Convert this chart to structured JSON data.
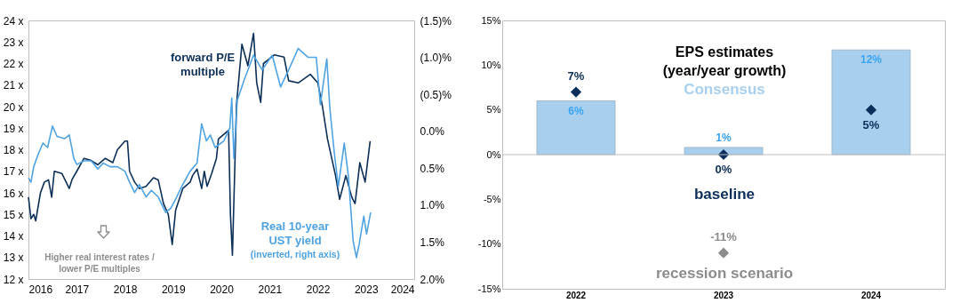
{
  "chart_data": [
    {
      "type": "line",
      "xlim": [
        "2016",
        "2024"
      ],
      "xticks": [
        "2016",
        "2017",
        "2018",
        "2019",
        "2020",
        "2021",
        "2022",
        "2023",
        "2024"
      ],
      "ylim": [
        12,
        24
      ],
      "yticks": [
        {
          "value": 12,
          "label": "12 x"
        },
        {
          "value": 13,
          "label": "13 x"
        },
        {
          "value": 14,
          "label": "14 x"
        },
        {
          "value": 15,
          "label": "15 x"
        },
        {
          "value": 16,
          "label": "16 x"
        },
        {
          "value": 17,
          "label": "17 x"
        },
        {
          "value": 18,
          "label": "18 x"
        },
        {
          "value": 19,
          "label": "19 x"
        },
        {
          "value": 20,
          "label": "20 x"
        },
        {
          "value": 21,
          "label": "21 x"
        },
        {
          "value": 22,
          "label": "22 x"
        },
        {
          "value": 23,
          "label": "23 x"
        },
        {
          "value": 24,
          "label": "24 x"
        }
      ],
      "y2lim": [
        2.0,
        -1.5
      ],
      "y2ticks": [
        {
          "value": -1.5,
          "label": "(1.5)%"
        },
        {
          "value": -1.0,
          "label": "(1.0)%"
        },
        {
          "value": -0.5,
          "label": "(0.5)%"
        },
        {
          "value": 0,
          "label": "0.0%"
        },
        {
          "value": 0.5,
          "label": "0.5%"
        },
        {
          "value": 1.0,
          "label": "1.0%"
        },
        {
          "value": 1.5,
          "label": "1.5%"
        },
        {
          "value": 2.0,
          "label": "2.0%"
        }
      ],
      "grid": false,
      "legend": false,
      "annotations": [
        "(inverted, right axis)",
        "Higher real interest rates / lower P/E multiples"
      ],
      "series": [
        {
          "name": "forward P/E multiple",
          "color": "#0c2f57",
          "x": [
            "2016-01-01",
            "2016-01-20",
            "2016-02-10",
            "2016-02-25",
            "2016-04-01",
            "2016-05-01",
            "2016-06-01",
            "2016-06-25",
            "2016-07-15",
            "2016-09-10",
            "2016-11-05",
            "2016-11-25",
            "2017-01-01",
            "2017-02-25",
            "2017-04-20",
            "2017-06-10",
            "2017-08-05",
            "2017-10-01",
            "2017-11-05",
            "2018-01-01",
            "2018-01-20",
            "2018-02-05",
            "2018-03-15",
            "2018-04-20",
            "2018-06-10",
            "2018-08-05",
            "2018-09-10",
            "2018-10-20",
            "2018-11-25",
            "2018-12-25",
            "2019-01-20",
            "2019-03-15",
            "2019-05-10",
            "2019-05-28",
            "2019-07-01",
            "2019-08-05",
            "2019-08-25",
            "2019-09-15",
            "2019-10-20",
            "2019-11-25",
            "2019-12-10",
            "2020-02-25",
            "2020-03-10",
            "2020-03-25",
            "2020-04-25",
            "2020-06-05",
            "2020-07-20",
            "2020-09-01",
            "2020-09-25",
            "2020-10-25",
            "2020-11-15",
            "2021-02-05",
            "2021-04-20",
            "2021-05-25",
            "2021-08-05",
            "2021-11-05",
            "2022-01-01",
            "2022-02-05",
            "2022-03-15",
            "2022-05-15",
            "2022-06-15",
            "2022-08-01",
            "2022-09-15",
            "2022-10-10",
            "2022-11-15",
            "2022-12-25",
            "2023-02-01"
          ],
          "values": [
            15.8,
            14.8,
            15.0,
            14.7,
            16.0,
            16.5,
            16.6,
            15.8,
            17.0,
            16.9,
            16.2,
            16.6,
            17.0,
            17.6,
            17.5,
            17.3,
            17.6,
            17.4,
            18.0,
            18.4,
            18.4,
            17.0,
            16.5,
            16.2,
            16.3,
            16.7,
            16.6,
            15.5,
            15.0,
            13.6,
            15.2,
            16.2,
            16.5,
            16.8,
            17.1,
            16.2,
            17.0,
            16.3,
            16.9,
            17.6,
            18.5,
            18.9,
            15.0,
            13.1,
            20.1,
            22.9,
            21.9,
            23.4,
            21.1,
            20.2,
            22.0,
            22.4,
            22.3,
            21.2,
            21.1,
            21.5,
            21.1,
            20.0,
            18.5,
            16.8,
            15.7,
            16.8,
            15.8,
            15.5,
            17.4,
            16.5,
            18.4
          ]
        },
        {
          "name": "Real 10-year UST yield",
          "color": "#4fa3e2",
          "axis": "y2",
          "x": [
            "2016-01-01",
            "2016-01-20",
            "2016-02-10",
            "2016-03-15",
            "2016-04-20",
            "2016-05-25",
            "2016-07-01",
            "2016-08-05",
            "2016-10-01",
            "2016-11-05",
            "2016-12-10",
            "2017-01-01",
            "2017-02-25",
            "2017-04-20",
            "2017-06-10",
            "2017-07-20",
            "2017-09-10",
            "2017-11-05",
            "2018-01-01",
            "2018-02-05",
            "2018-03-15",
            "2018-04-20",
            "2018-06-10",
            "2018-07-20",
            "2018-09-10",
            "2018-11-05",
            "2018-12-15",
            "2019-01-20",
            "2019-03-15",
            "2019-05-10",
            "2019-07-01",
            "2019-08-05",
            "2019-09-10",
            "2019-10-10",
            "2019-11-15",
            "2020-01-20",
            "2020-03-05",
            "2020-03-20",
            "2020-04-05",
            "2020-05-01",
            "2020-06-25",
            "2020-09-01",
            "2020-11-05",
            "2021-01-20",
            "2021-03-25",
            "2021-05-25",
            "2021-08-05",
            "2021-10-20",
            "2021-12-20",
            "2022-01-20",
            "2022-03-10",
            "2022-04-01",
            "2022-05-05",
            "2022-06-05",
            "2022-07-20",
            "2022-08-20",
            "2022-09-25",
            "2022-10-20",
            "2022-11-10",
            "2022-12-15",
            "2023-01-05",
            "2023-02-05"
          ],
          "values": [
            0.63,
            0.69,
            0.48,
            0.31,
            0.16,
            0.22,
            -0.07,
            0.07,
            0.1,
            0.05,
            0.37,
            0.45,
            0.4,
            0.4,
            0.51,
            0.43,
            0.48,
            0.48,
            0.54,
            0.69,
            0.83,
            0.72,
            0.89,
            0.8,
            0.89,
            1.1,
            1.04,
            0.92,
            0.72,
            0.54,
            0.43,
            -0.1,
            0.13,
            0.05,
            0.22,
            0.13,
            -0.04,
            -0.45,
            0.37,
            -0.42,
            -0.71,
            -1.03,
            -0.83,
            -1.03,
            -0.6,
            -0.83,
            -1.12,
            -1.0,
            -1.0,
            -0.36,
            -0.98,
            -0.33,
            0.28,
            0.75,
            0.16,
            0.6,
            1.48,
            1.71,
            1.53,
            1.15,
            1.39,
            1.1
          ]
        }
      ]
    },
    {
      "type": "bar",
      "title": "EPS estimates (year/year growth)",
      "categories": [
        "2022",
        "2023",
        "2024"
      ],
      "ylim": [
        -15,
        15
      ],
      "yticks": [
        {
          "value": -15,
          "label": "-15%"
        },
        {
          "value": -10,
          "label": "-10%"
        },
        {
          "value": -5,
          "label": "-5%"
        },
        {
          "value": 0,
          "label": "0%"
        },
        {
          "value": 5,
          "label": "5%"
        },
        {
          "value": 10,
          "label": "10%"
        },
        {
          "value": 15,
          "label": "15%"
        }
      ],
      "grid": false,
      "legend": false,
      "ref_lines": [
        {
          "axis": "y",
          "value": 0,
          "color": "#bfbfbf"
        }
      ],
      "series": [
        {
          "name": "Consensus",
          "type": "bar",
          "color": "#a8d0ee",
          "values": [
            6,
            0.8,
            11.7
          ],
          "value_labels": [
            "6%",
            "1%",
            "12%"
          ]
        },
        {
          "name": "baseline",
          "type": "scatter",
          "marker": "diamond",
          "color": "#0b2f5a",
          "values": [
            7,
            0,
            5
          ],
          "value_labels": [
            "7%",
            "0%",
            "5%"
          ]
        },
        {
          "name": "recession scenario",
          "type": "scatter",
          "marker": "diamond",
          "color": "#8c8c8c",
          "values": [
            null,
            -11,
            null
          ],
          "value_labels": [
            null,
            "-11%",
            null
          ]
        }
      ]
    }
  ]
}
